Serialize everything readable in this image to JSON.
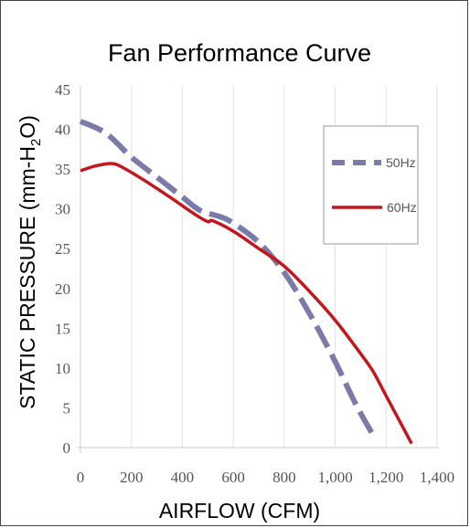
{
  "chart_data": {
    "type": "line",
    "title": "Fan Performance Curve",
    "xlabel": "AIRFLOW (CFM)",
    "ylabel_main": "STATIC PRESSURE (mm-H",
    "ylabel_sub": "2",
    "ylabel_end": "O)",
    "xlim": [
      0,
      1400
    ],
    "ylim": [
      0,
      45
    ],
    "x_ticks": [
      0,
      200,
      400,
      600,
      800,
      1000,
      1200,
      1400
    ],
    "x_tick_labels": [
      "0",
      "200",
      "400",
      "600",
      "800",
      "1,000",
      "1,200",
      "1,400"
    ],
    "y_ticks": [
      0,
      5,
      10,
      15,
      20,
      25,
      30,
      35,
      40,
      45
    ],
    "y_tick_labels": [
      "0",
      "5",
      "10",
      "15",
      "20",
      "25",
      "30",
      "35",
      "40",
      "45"
    ],
    "grid": "vertical",
    "legend": "top-right",
    "series": [
      {
        "name": "50Hz",
        "color": "#7a7aab",
        "style": "dashed",
        "points": [
          [
            0,
            41
          ],
          [
            100,
            39.5
          ],
          [
            200,
            36.5
          ],
          [
            300,
            34
          ],
          [
            400,
            31.5
          ],
          [
            470,
            29.8
          ],
          [
            550,
            29
          ],
          [
            600,
            28.2
          ],
          [
            700,
            25.8
          ],
          [
            800,
            22
          ],
          [
            900,
            16.8
          ],
          [
            1000,
            10.8
          ],
          [
            1080,
            5.5
          ],
          [
            1150,
            1.5
          ]
        ]
      },
      {
        "name": "60Hz",
        "color": "#c4161c",
        "style": "solid",
        "points": [
          [
            0,
            34.8
          ],
          [
            60,
            35.4
          ],
          [
            120,
            35.7
          ],
          [
            160,
            35.3
          ],
          [
            250,
            33.6
          ],
          [
            350,
            31.5
          ],
          [
            450,
            29.3
          ],
          [
            500,
            28.4
          ],
          [
            520,
            28.5
          ],
          [
            600,
            27.2
          ],
          [
            700,
            25
          ],
          [
            800,
            22.8
          ],
          [
            900,
            19.6
          ],
          [
            1000,
            16
          ],
          [
            1100,
            11.8
          ],
          [
            1150,
            9.5
          ],
          [
            1200,
            6.5
          ],
          [
            1300,
            0.5
          ]
        ]
      }
    ]
  }
}
